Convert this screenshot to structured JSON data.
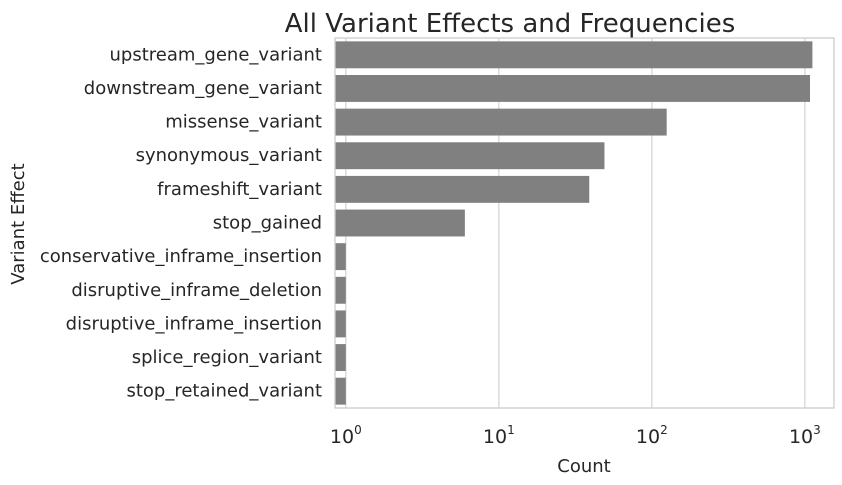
{
  "chart_data": {
    "type": "bar",
    "orientation": "horizontal",
    "title": "All Variant Effects and Frequencies",
    "xlabel": "Count",
    "ylabel": "Variant Effect",
    "xscale": "log",
    "xlim": [
      0.85,
      1550
    ],
    "xticks": [
      {
        "base": "10",
        "exp": "0",
        "value": 1
      },
      {
        "base": "10",
        "exp": "1",
        "value": 10
      },
      {
        "base": "10",
        "exp": "2",
        "value": 100
      },
      {
        "base": "10",
        "exp": "3",
        "value": 1000
      }
    ],
    "grid": "vertical",
    "legend": "none",
    "categories": [
      "upstream_gene_variant",
      "downstream_gene_variant",
      "missense_variant",
      "synonymous_variant",
      "frameshift_variant",
      "stop_gained",
      "conservative_inframe_insertion",
      "disruptive_inframe_deletion",
      "disruptive_inframe_insertion",
      "splice_region_variant",
      "stop_retained_variant"
    ],
    "values": [
      1120,
      1080,
      125,
      49,
      39,
      6,
      1,
      1,
      1,
      1,
      1
    ],
    "bar_color": "#808080",
    "axis_color": "#262626"
  }
}
